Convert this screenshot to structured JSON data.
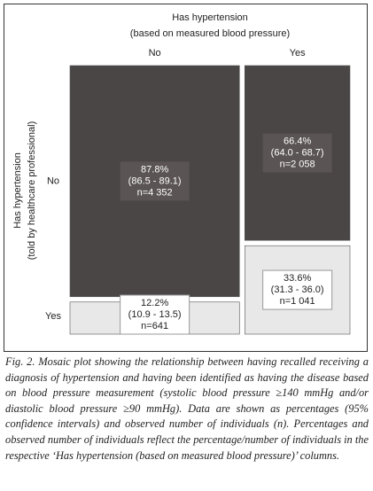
{
  "chart_data": {
    "type": "mosaic",
    "title": "Has hypertension",
    "subtitle": "(based on measured blood pressure)",
    "y_label": "Has hypertension",
    "y_sublabel": "(told by healthcare professional)",
    "categories": [
      "No",
      "Yes"
    ],
    "series": [
      {
        "name": "No",
        "color": "#4a4646",
        "label_box_color": "#5a5454",
        "text_color": "#ffffff",
        "values": [
          87.8,
          66.4
        ],
        "value_labels": [
          "87.8%",
          "66.4%"
        ],
        "ci_labels": [
          "(86.5 - 89.1)",
          "(64.0 - 68.7)"
        ],
        "n": [
          4352,
          2058
        ],
        "n_labels": [
          "n=4 352",
          "n=2 058"
        ]
      },
      {
        "name": "Yes",
        "color": "#e8e8e8",
        "label_box_color": "#ffffff",
        "text_color": "#222222",
        "values": [
          12.2,
          33.6
        ],
        "value_labels": [
          "12.2%",
          "33.6%"
        ],
        "ci_labels": [
          "(10.9 - 13.5)",
          "(31.3 - 36.0)"
        ],
        "n": [
          641,
          1041
        ],
        "n_labels": [
          "n=641",
          "n=1 041"
        ]
      }
    ],
    "caption": "Fig. 2. Mosaic plot showing the relationship between having recalled receiving a diagnosis of hypertension and having been identified as having the disease based on blood pressure measurement (systolic blood pressure ≥140 mmHg and/or diastolic blood pressure ≥90 mmHg). Data are shown as percentages (95% confidence intervals) and observed number of individuals (n). Percentages and observed number of individuals reflect the percentage/number of individuals in the respective ‘Has hypertension (based on measured blood pressure)’ columns."
  }
}
